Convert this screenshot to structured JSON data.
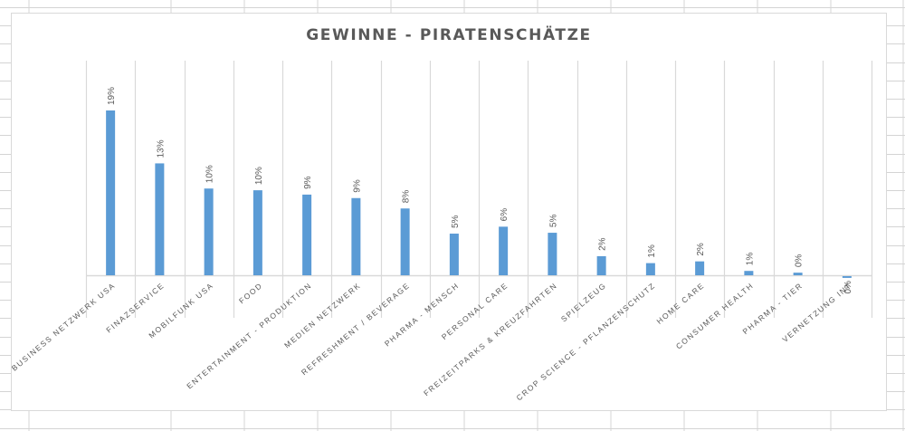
{
  "chart_data": {
    "type": "bar",
    "title": "GEWINNE - PIRATENSCHÄTZE",
    "xlabel": "",
    "ylabel": "",
    "ylim": [
      0,
      20
    ],
    "grid": "vertical category gridlines",
    "legend": "none",
    "categories": [
      "BUSINESS NETZWERK USA",
      "FINAZSERVICE",
      "MOBILFUNK USA",
      "FOOD",
      "ENTERTAINMENT - PRODUKTION",
      "MEDIEN NETZWERK",
      "REFRESHMENT / BEVERAGE",
      "PHARMA - MENSCH",
      "PERSONAL CARE",
      "FREIZEITPARKS & KREUZFAHRTEN",
      "SPIELZEUG",
      "CROP SCIENCE - PFLANZENSCHUTZ",
      "HOME CARE",
      "CONSUMER HEALTH",
      "PHARMA - TIER",
      "VERNETZUNG INT"
    ],
    "values": [
      19.0,
      12.9,
      10.0,
      9.8,
      9.3,
      8.9,
      7.7,
      4.8,
      5.6,
      4.9,
      2.2,
      1.4,
      1.6,
      0.5,
      0.3,
      -0.2
    ],
    "data_labels": [
      "19%",
      "13%",
      "10%",
      "10%",
      "9%",
      "9%",
      "8%",
      "5%",
      "6%",
      "5%",
      "2%",
      "1%",
      "2%",
      "1%",
      "0%",
      "0%"
    ],
    "bar_color": "#5b9bd5"
  },
  "colors": {
    "bar": "#5b9bd5",
    "gridline": "#d9d9d9",
    "text": "#595959",
    "sheet_grid": "#d4d4d4"
  }
}
